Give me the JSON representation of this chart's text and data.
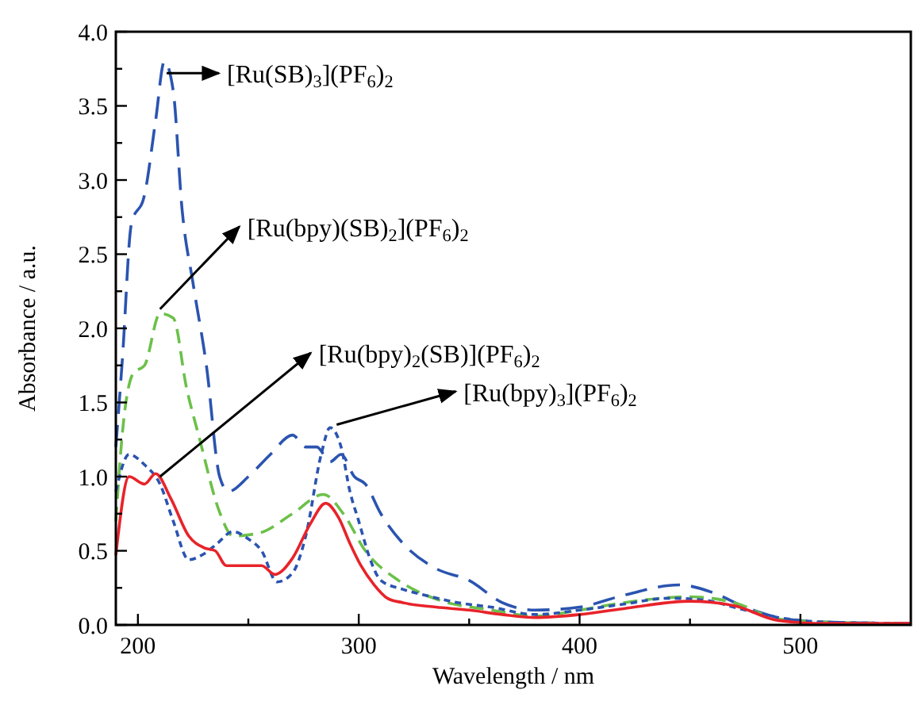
{
  "chart_data": {
    "type": "line",
    "xlabel": "Wavelength / nm",
    "ylabel": "Absorbance / a.u.",
    "xlim": [
      190,
      550
    ],
    "xticks": [
      200,
      {
        "value": 250,
        "label": null
      },
      300,
      {
        "value": 350,
        "label": null
      },
      400,
      {
        "value": 450,
        "label": null
      },
      500
    ],
    "ylim": [
      0,
      4
    ],
    "yticks": [
      "0.0",
      {
        "value": 0.25,
        "label": null
      },
      {
        "value": 0.5,
        "label": "0.5"
      },
      {
        "value": 0.75,
        "label": null
      },
      {
        "value": 1,
        "label": "1.0"
      },
      {
        "value": 1.25,
        "label": null
      },
      {
        "value": 1.5,
        "label": "1.5"
      },
      {
        "value": 1.75,
        "label": null
      },
      {
        "value": 2,
        "label": "2.0"
      },
      {
        "value": 2.25,
        "label": null
      },
      {
        "value": 2.5,
        "label": "2.5"
      },
      {
        "value": 2.75,
        "label": null
      },
      {
        "value": 3,
        "label": "3.0"
      },
      {
        "value": 3.25,
        "label": null
      },
      {
        "value": 3.5,
        "label": "3.5"
      },
      {
        "value": 3.75,
        "label": null
      },
      {
        "value": 4,
        "label": "4.0"
      }
    ],
    "grid": false,
    "marker": "none",
    "series": [
      {
        "color": "#2b54b0",
        "line_style": "dashed",
        "x": [
          190,
          193,
          197,
          203,
          208,
          212,
          216,
          220,
          225,
          231,
          237,
          241,
          250,
          260,
          270,
          276,
          281,
          287,
          292,
          298,
          303,
          310,
          320,
          335,
          350,
          365,
          380,
          400,
          420,
          445,
          460,
          475,
          490,
          510,
          550
        ],
        "values": [
          1.2,
          1.8,
          2.7,
          2.9,
          3.4,
          3.8,
          3.6,
          2.8,
          2.3,
          1.75,
          1.0,
          0.9,
          1.0,
          1.15,
          1.28,
          1.2,
          1.2,
          1.1,
          1.15,
          1.0,
          0.95,
          0.75,
          0.55,
          0.38,
          0.3,
          0.15,
          0.1,
          0.12,
          0.2,
          0.27,
          0.22,
          0.12,
          0.05,
          0.02,
          0.01
        ]
      },
      {
        "color": "#6cc04a",
        "line_style": "dashed",
        "x": [
          190,
          193,
          198,
          203,
          210,
          216,
          222,
          228,
          237,
          243,
          255,
          270,
          284,
          293,
          303,
          318,
          334,
          360,
          380,
          400,
          420,
          450,
          470,
          490,
          510,
          550
        ],
        "values": [
          0.7,
          1.3,
          1.7,
          1.75,
          2.1,
          2.07,
          1.6,
          1.25,
          0.76,
          0.6,
          0.62,
          0.75,
          0.88,
          0.75,
          0.5,
          0.3,
          0.18,
          0.1,
          0.06,
          0.1,
          0.15,
          0.19,
          0.15,
          0.04,
          0.02,
          0.01
        ]
      },
      {
        "color": "#2b54b0",
        "line_style": "dotted",
        "x": [
          190,
          196,
          203,
          210,
          216,
          223,
          230,
          236,
          243,
          250,
          256,
          263,
          270,
          276,
          283,
          287,
          292,
          296,
          300,
          305,
          310,
          320,
          330,
          345,
          360,
          380,
          400,
          420,
          440,
          455,
          475,
          490,
          510,
          550
        ],
        "values": [
          0.9,
          1.15,
          1.08,
          0.95,
          0.7,
          0.44,
          0.48,
          0.55,
          0.63,
          0.58,
          0.5,
          0.29,
          0.35,
          0.6,
          1.15,
          1.33,
          1.2,
          0.9,
          0.7,
          0.45,
          0.3,
          0.24,
          0.2,
          0.15,
          0.12,
          0.07,
          0.1,
          0.14,
          0.18,
          0.17,
          0.1,
          0.05,
          0.02,
          0.01
        ]
      },
      {
        "color": "#e8232a",
        "line_style": "solid",
        "x": [
          190,
          196,
          203,
          208,
          215,
          223,
          230,
          235,
          240,
          248,
          256,
          262,
          270,
          278,
          285,
          291,
          296,
          301,
          307,
          313,
          320,
          335,
          350,
          365,
          380,
          400,
          420,
          450,
          470,
          490,
          510,
          550
        ],
        "values": [
          0.47,
          1.0,
          0.95,
          1.02,
          0.85,
          0.6,
          0.52,
          0.5,
          0.4,
          0.4,
          0.4,
          0.34,
          0.45,
          0.68,
          0.82,
          0.72,
          0.55,
          0.4,
          0.27,
          0.18,
          0.15,
          0.12,
          0.1,
          0.07,
          0.05,
          0.07,
          0.11,
          0.16,
          0.13,
          0.03,
          0.01,
          0.01
        ]
      }
    ],
    "annotations": [
      {
        "text": "[Ru(SB)$_{3}$](PF$_{6}$)$_{2}$",
        "x": 213,
        "y": 3.72
      },
      {
        "text": "[Ru(bpy)(SB)$_{2}$](PF$_{6}$)$_{2}$",
        "x": 210,
        "y": 2.13
      },
      {
        "text": "[Ru(bpy)$_{2}$(SB)](PF$_{6}$)$_{2}$",
        "x": 210,
        "y": 1.0
      },
      {
        "text": "[Ru(bpy)$_{3}$](PF$_{6}$)$_{2}$",
        "x": 290,
        "y": 1.35
      }
    ]
  }
}
